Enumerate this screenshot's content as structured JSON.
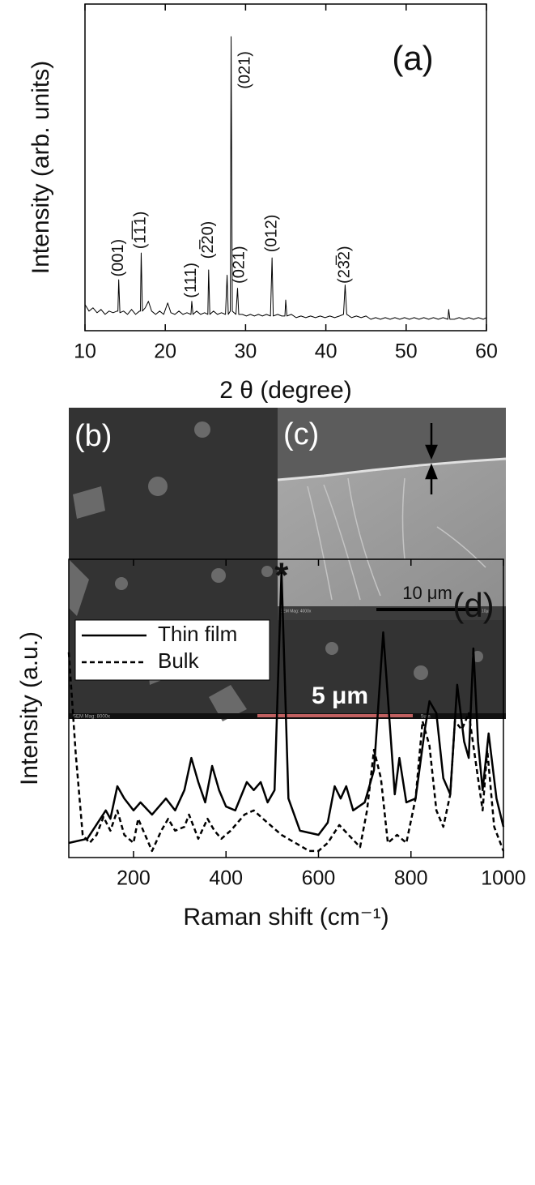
{
  "chart_data": [
    {
      "type": "line",
      "panel_label": "(a)",
      "x_label": "2 θ (degree)",
      "y_label": "Intensity (arb. units)",
      "xlim": [
        10,
        60
      ],
      "xticks": [
        10,
        20,
        30,
        40,
        50,
        60
      ],
      "ylim": [
        0,
        100
      ],
      "x": [
        10,
        10.5,
        11,
        11.5,
        12,
        12.5,
        13,
        13.5,
        14,
        14.1,
        14.2,
        14.35,
        14.8,
        15.3,
        15.8,
        16.3,
        16.8,
        16.9,
        17.0,
        17.15,
        17.5,
        17.9,
        18.3,
        18.8,
        19.3,
        19.8,
        20.3,
        20.7,
        21.2,
        21.7,
        22.2,
        22.7,
        23.2,
        23.3,
        23.45,
        23.9,
        24.4,
        24.9,
        25.3,
        25.4,
        25.55,
        26,
        26.5,
        27,
        27.5,
        27.7,
        27.85,
        28.1,
        28.2,
        28.35,
        28.8,
        29.0,
        29.15,
        29.6,
        30.1,
        30.6,
        31.1,
        31.6,
        32.1,
        32.6,
        33.1,
        33.3,
        33.45,
        34,
        34.5,
        34.9,
        35.0,
        35.15,
        35.7,
        36.3,
        36.9,
        37.5,
        38.1,
        38.7,
        39.3,
        39.9,
        40.5,
        41.1,
        41.7,
        42.2,
        42.4,
        42.6,
        43.2,
        43.8,
        44.4,
        45,
        45.6,
        46.2,
        46.8,
        47.4,
        48,
        48.6,
        49.2,
        49.8,
        50.4,
        51,
        51.6,
        52.2,
        52.8,
        53.4,
        54,
        54.6,
        55.2,
        55.3,
        55.45,
        56,
        56.6,
        57.2,
        57.8,
        58.4,
        59,
        59.6,
        60
      ],
      "series": [
        {
          "color": "#000000",
          "values": [
            8,
            6,
            7,
            5.5,
            6.5,
            5,
            6,
            5.5,
            6,
            6,
            15.6,
            5.5,
            6,
            5,
            6.5,
            5,
            6,
            6,
            23.8,
            6,
            7,
            9,
            6,
            5,
            6,
            5,
            8.5,
            5.5,
            5,
            6,
            5,
            5.5,
            5,
            9,
            5,
            6,
            5,
            5.5,
            5,
            18.6,
            5,
            6,
            5,
            5.5,
            5,
            17,
            5,
            6,
            90,
            6,
            5,
            13,
            5,
            5,
            4.5,
            5,
            4.5,
            5,
            4.5,
            5,
            4.5,
            22.3,
            4.5,
            5,
            4.5,
            4.5,
            9.4,
            4.5,
            5,
            4,
            4.5,
            4,
            4.5,
            4,
            4.5,
            4,
            4.5,
            4,
            4.5,
            5,
            14,
            5,
            4,
            4.5,
            4,
            4.5,
            3.5,
            4,
            3.5,
            4,
            3.5,
            4,
            3.5,
            4,
            3.5,
            4,
            3.5,
            4,
            3.5,
            4,
            3.5,
            4,
            3.5,
            6.5,
            3.5,
            3.5,
            4,
            3.5,
            4,
            3.5,
            4,
            3.5,
            4
          ]
        }
      ],
      "annotations": [
        {
          "text": "(001)",
          "x": 14.2,
          "y": 16.5,
          "rotation": -90
        },
        {
          "text": "(1̅1̅1)",
          "x": 17.0,
          "y": 25,
          "rotation": -90
        },
        {
          "text": "(111)",
          "x": 23.3,
          "y": 10,
          "rotation": -90
        },
        {
          "text": "(2̅20)",
          "x": 25.4,
          "y": 22,
          "rotation": -90
        },
        {
          "text": "(021)",
          "x": 30.0,
          "y": 74,
          "rotation": -90
        },
        {
          "text": "(021)",
          "x": 29.3,
          "y": 14.4,
          "rotation": -90
        },
        {
          "text": "(012)",
          "x": 33.3,
          "y": 24,
          "rotation": -90
        },
        {
          "text": "(23̅2)",
          "x": 42.4,
          "y": 14.4,
          "rotation": -90
        }
      ]
    },
    {
      "type": "line",
      "panel_label": "(d)",
      "x_label": "Raman shift (cm⁻¹)",
      "y_label": "Intensity (a.u.)",
      "xlim": [
        60,
        1000
      ],
      "xticks": [
        200,
        400,
        600,
        800,
        1000
      ],
      "ylim": [
        0,
        100
      ],
      "legend": "upper left",
      "series": [
        {
          "name": "Thin film",
          "color": "#000000",
          "dashed": false,
          "x": [
            60,
            100,
            140,
            150,
            165,
            180,
            200,
            215,
            240,
            270,
            290,
            310,
            325,
            340,
            355,
            370,
            385,
            400,
            420,
            445,
            460,
            475,
            490,
            505,
            520,
            535,
            560,
            600,
            620,
            635,
            648,
            660,
            675,
            700,
            720,
            740,
            755,
            765,
            775,
            790,
            810,
            830,
            840,
            855,
            870,
            885,
            900,
            915,
            925,
            935,
            945,
            955,
            968,
            985,
            1000
          ],
          "values": [
            4.9,
            6.3,
            15.8,
            13.0,
            23.9,
            19.8,
            15.8,
            18.5,
            14.4,
            19.8,
            15.8,
            22.6,
            33.4,
            25.3,
            18.5,
            30.7,
            22.6,
            17.1,
            15.8,
            25.3,
            22.6,
            25.3,
            18.5,
            22.6,
            95.9,
            19.8,
            9.0,
            7.6,
            11.7,
            23.9,
            19.8,
            23.9,
            15.8,
            18.5,
            29.3,
            75.5,
            42.9,
            21.2,
            33.4,
            18.5,
            19.8,
            42.9,
            52.4,
            48.4,
            26.6,
            21.2,
            57.9,
            38.9,
            33.4,
            70.1,
            38.9,
            22.6,
            41.6,
            19.8,
            10.3
          ]
        },
        {
          "name": "Bulk",
          "color": "#000000",
          "dashed": true,
          "x": [
            60,
            75,
            90,
            105,
            120,
            135,
            150,
            165,
            180,
            200,
            210,
            225,
            240,
            260,
            275,
            290,
            310,
            320,
            340,
            360,
            375,
            390,
            410,
            440,
            460,
            480,
            500,
            520,
            550,
            580,
            600,
            620,
            645,
            665,
            690,
            705,
            720,
            735,
            750,
            770,
            790,
            810,
            825,
            840,
            855,
            870,
            885,
            895,
            910,
            925,
            940,
            955,
            965,
            980,
            1000
          ],
          "values": [
            68.8,
            34.8,
            7.6,
            4.9,
            7.6,
            13.6,
            9.0,
            15.8,
            7.6,
            4.9,
            13.0,
            7.6,
            2.2,
            9.0,
            13.0,
            9.0,
            10.3,
            14.4,
            6.3,
            13.0,
            9.0,
            6.3,
            9.0,
            14.4,
            15.8,
            13.0,
            10.3,
            7.6,
            4.9,
            2.2,
            2.2,
            4.9,
            10.9,
            7.6,
            3.5,
            15.8,
            36.1,
            26.6,
            4.9,
            7.6,
            4.9,
            19.8,
            45.7,
            37.5,
            15.8,
            10.3,
            21.2,
            45.7,
            42.9,
            48.4,
            32.1,
            15.8,
            36.1,
            10.3,
            2.2
          ]
        }
      ],
      "annotations": [
        {
          "text": "*",
          "x": 520,
          "y": 97
        }
      ]
    }
  ],
  "images": [
    {
      "label": "(b)",
      "scale_bar": "5 μm",
      "footer": "SEM Mag: 8000x",
      "footer_scale": "5um"
    },
    {
      "label": "(c)",
      "scale_bar": "10 μm",
      "footer": "SEM Mag: 4000x",
      "footer_scale": "10µm"
    }
  ]
}
